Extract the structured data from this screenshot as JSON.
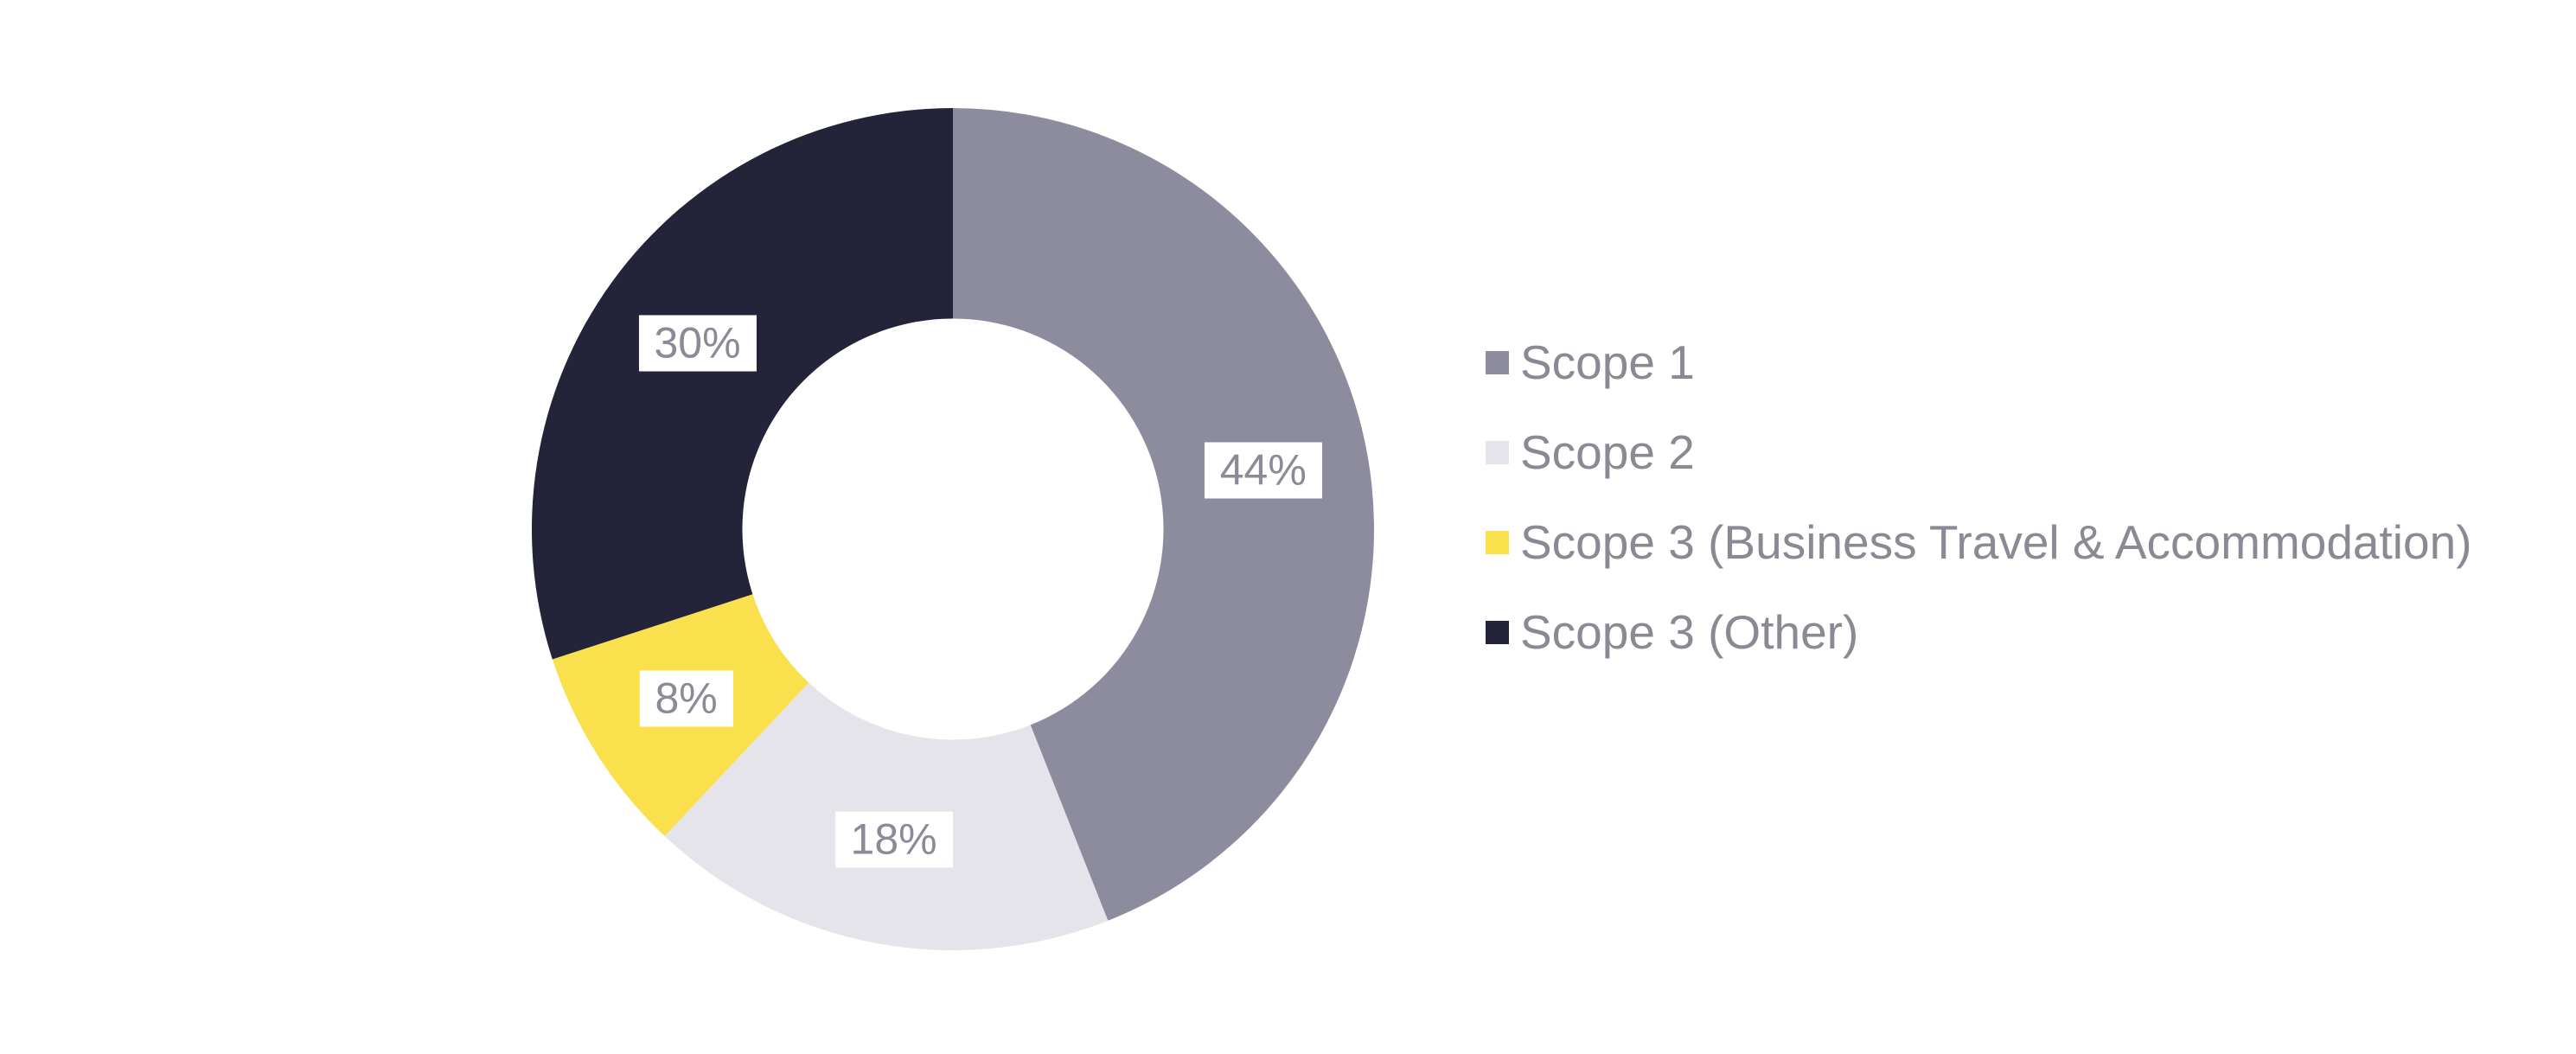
{
  "page": {
    "background_color": "#ffffff"
  },
  "chart_data": {
    "type": "pie",
    "subtype": "donut",
    "title": "",
    "direction": "clockwise",
    "start_angle_deg_from_top": 0,
    "donut_hole_ratio": 0.5,
    "legend_position": "right",
    "grid": false,
    "slices": [
      {
        "label": "Scope 1",
        "value": 44,
        "display": "44%",
        "color": "#8C8C9E"
      },
      {
        "label": "Scope 2",
        "value": 18,
        "display": "18%",
        "color": "#E4E4EA"
      },
      {
        "label": "Scope 3 (Business Travel & Accommodation)",
        "value": 8,
        "display": "8%",
        "color": "#F9E04C"
      },
      {
        "label": "Scope 3 (Other)",
        "value": 30,
        "display": "30%",
        "color": "#232339"
      }
    ],
    "data_label_text_color": "#8A8A99",
    "data_label_background_color": "#FFFFFF",
    "legend_text_color": "#8A8A94"
  }
}
